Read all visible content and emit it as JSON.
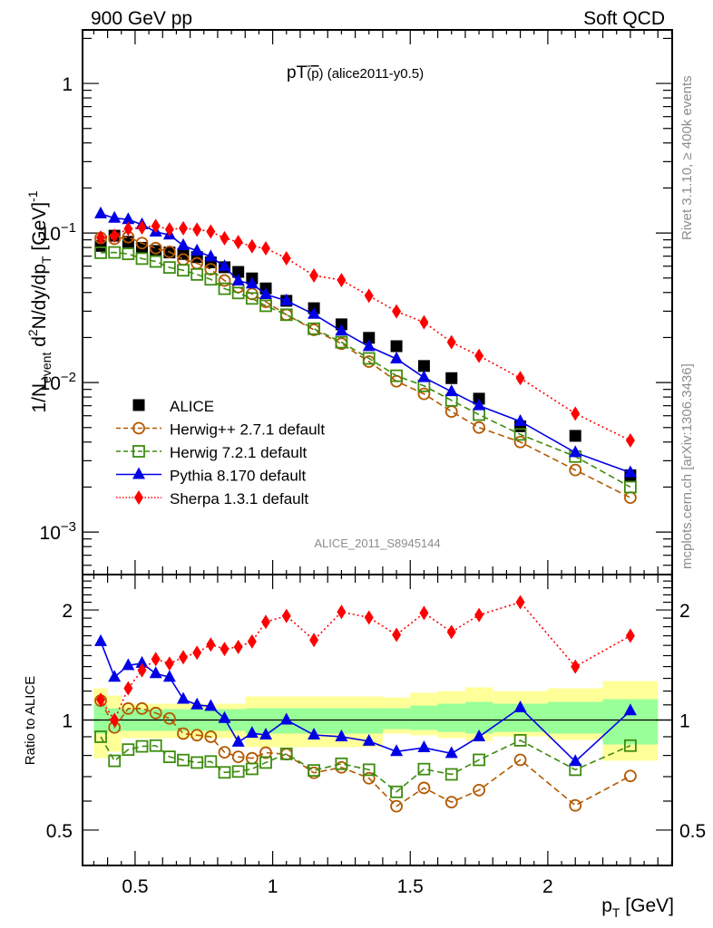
{
  "header": {
    "left_label": "900 GeV pp",
    "right_label": "Soft QCD"
  },
  "side_labels": {
    "rivet": "Rivet 3.1.10, ≥ 400k events",
    "mcplots": "mcplots.cern.ch [arXiv:1306.3436]"
  },
  "chart_data": [
    {
      "type": "scatter",
      "panel": "main",
      "title": "pT(p̄) (alice2011-y0.5)",
      "title_parts": {
        "pre": "pT",
        "paren_open": "(",
        "particle": "p",
        "paren_close": ")",
        "post": " (alice2011-y0.5)"
      },
      "analysis_label": "ALICE_2011_S8945144",
      "ylabel": "1/N_event d²N/dy/dp_T [GeV]⁻¹",
      "ylabel_parts": {
        "a": "1/N",
        "a_sub": "event",
        "b": " d",
        "b_sup": "2",
        "c": "N/dy/dp",
        "c_sub": "T",
        "d": "  [GeV]",
        "d_sup": "-1"
      },
      "yscale": "log",
      "ylim": [
        0.00052,
        2.28
      ],
      "xlim": [
        0.309,
        2.452
      ],
      "y_ticks": [
        {
          "value": 1,
          "label": "1"
        },
        {
          "value": 0.1,
          "label": "10",
          "exp": "−1"
        },
        {
          "value": 0.01,
          "label": "10",
          "exp": "−2"
        },
        {
          "value": 0.001,
          "label": "10",
          "exp": "−3"
        }
      ],
      "legend_position": "lower-left",
      "x": [
        0.375,
        0.425,
        0.475,
        0.525,
        0.575,
        0.625,
        0.675,
        0.725,
        0.775,
        0.825,
        0.875,
        0.925,
        0.975,
        1.05,
        1.15,
        1.25,
        1.35,
        1.45,
        1.55,
        1.65,
        1.75,
        1.9,
        2.1,
        2.3
      ],
      "series": [
        {
          "name": "ALICE",
          "marker": "square",
          "color": "#000000",
          "line": "none",
          "values": [
            0.082,
            0.0959,
            0.0873,
            0.0796,
            0.0758,
            0.0741,
            0.0724,
            0.069,
            0.0636,
            0.059,
            0.0549,
            0.0497,
            0.0426,
            0.0352,
            0.0314,
            0.0245,
            0.0199,
            0.0175,
            0.0129,
            0.0107,
            0.0078,
            0.0051,
            0.0044,
            0.0024
          ]
        },
        {
          "name": "Herwig++ 2.7.1 default",
          "marker": "open-circle",
          "color": "#b35900",
          "line": "dashed",
          "values": [
            0.0927,
            0.0915,
            0.0938,
            0.0856,
            0.0792,
            0.0748,
            0.0665,
            0.0627,
            0.0572,
            0.0481,
            0.0435,
            0.0391,
            0.0347,
            0.0284,
            0.0225,
            0.0182,
            0.0138,
            0.0102,
            0.0084,
            0.0064,
            0.005,
            0.004,
            0.0026,
            0.0017
          ]
        },
        {
          "name": "Herwig 7.2.1 default",
          "marker": "open-square",
          "color": "#3d8c0f",
          "line": "dashed",
          "values": [
            0.0738,
            0.0741,
            0.0725,
            0.0674,
            0.0645,
            0.0588,
            0.0563,
            0.0528,
            0.049,
            0.0424,
            0.0397,
            0.0365,
            0.0326,
            0.0284,
            0.0229,
            0.0186,
            0.0145,
            0.0111,
            0.0095,
            0.0076,
            0.0061,
            0.0045,
            0.0032,
            0.002
          ]
        },
        {
          "name": "Pythia 8.170 default",
          "marker": "triangle",
          "color": "#0000e6",
          "line": "solid",
          "values": [
            0.1345,
            0.1256,
            0.1231,
            0.1138,
            0.1016,
            0.0971,
            0.0825,
            0.0759,
            0.0693,
            0.0596,
            0.0478,
            0.0457,
            0.0388,
            0.0352,
            0.0286,
            0.0221,
            0.0174,
            0.0144,
            0.0108,
            0.0087,
            0.007,
            0.0055,
            0.0034,
            0.0025
          ]
        },
        {
          "name": "Sherpa 1.3.1 default",
          "marker": "diamond",
          "color": "#ff0000",
          "line": "dotted",
          "values": [
            0.0932,
            0.0959,
            0.1066,
            0.1089,
            0.1113,
            0.1057,
            0.1075,
            0.1054,
            0.1023,
            0.0923,
            0.087,
            0.0815,
            0.079,
            0.0678,
            0.052,
            0.0484,
            0.038,
            0.0299,
            0.0253,
            0.0186,
            0.0151,
            0.0107,
            0.0062,
            0.0041
          ]
        }
      ]
    },
    {
      "type": "scatter",
      "panel": "ratio",
      "ylabel": "Ratio to ALICE",
      "xlabel": "p_T [GeV]",
      "xlabel_parts": {
        "a": "p",
        "a_sub": "T",
        "b": " [GeV]"
      },
      "yscale": "log",
      "ylim": [
        0.4,
        2.5
      ],
      "xlim": [
        0.309,
        2.452
      ],
      "reference_line": 1,
      "x_ticks": [
        {
          "value": 0.5,
          "label": "0.5"
        },
        {
          "value": 1,
          "label": "1"
        },
        {
          "value": 1.5,
          "label": "1.5"
        },
        {
          "value": 2,
          "label": "2"
        }
      ],
      "y_ticks": [
        {
          "value": 2,
          "label": "2"
        },
        {
          "value": 1,
          "label": "1"
        },
        {
          "value": 0.5,
          "label": "0.5"
        }
      ],
      "x": [
        0.375,
        0.425,
        0.475,
        0.525,
        0.575,
        0.625,
        0.675,
        0.725,
        0.775,
        0.825,
        0.875,
        0.925,
        0.975,
        1.05,
        1.15,
        1.25,
        1.35,
        1.45,
        1.55,
        1.65,
        1.75,
        1.9,
        2.1,
        2.3
      ],
      "bands": [
        {
          "x_range": [
            0.35,
            0.4
          ],
          "stat": [
            0.918,
            1.102
          ],
          "total": [
            0.787,
            1.221
          ]
        },
        {
          "x_range": [
            0.4,
            0.45
          ],
          "stat": [
            0.928,
            1.077
          ],
          "total": [
            0.819,
            1.166
          ]
        },
        {
          "x_range": [
            0.45,
            0.9
          ],
          "stat": [
            0.934,
            1.071
          ],
          "total": [
            0.892,
            1.108
          ]
        },
        {
          "x_range": [
            0.9,
            1.4
          ],
          "stat": [
            0.918,
            1.077
          ],
          "total": [
            0.843,
            1.16
          ]
        },
        {
          "x_range": [
            1.4,
            1.5
          ],
          "stat": [
            0.944,
            1.077
          ],
          "total": [
            0.918,
            1.153
          ]
        },
        {
          "x_range": [
            1.5,
            1.6
          ],
          "stat": [
            0.939,
            1.095
          ],
          "total": [
            0.908,
            1.187
          ]
        },
        {
          "x_range": [
            1.6,
            1.7
          ],
          "stat": [
            0.928,
            1.108
          ],
          "total": [
            0.892,
            1.2
          ]
        },
        {
          "x_range": [
            1.7,
            1.8
          ],
          "stat": [
            0.918,
            1.121
          ],
          "total": [
            0.877,
            1.228
          ]
        },
        {
          "x_range": [
            1.8,
            2.0
          ],
          "stat": [
            0.928,
            1.108
          ],
          "total": [
            0.902,
            1.2
          ]
        },
        {
          "x_range": [
            2.0,
            2.2
          ],
          "stat": [
            0.918,
            1.121
          ],
          "total": [
            0.882,
            1.221
          ]
        },
        {
          "x_range": [
            2.2,
            2.4
          ],
          "stat": [
            0.857,
            1.14
          ],
          "total": [
            0.774,
            1.278
          ]
        }
      ],
      "band_colors": {
        "stat": "#99ff99",
        "total": "#ffff99"
      },
      "series": [
        {
          "name": "Herwig++ 2.7.1 default",
          "marker": "open-circle",
          "color": "#b35900",
          "line": "dashed",
          "values": [
            1.13,
            0.954,
            1.075,
            1.075,
            1.045,
            1.01,
            0.918,
            0.909,
            0.9,
            0.816,
            0.793,
            0.786,
            0.814,
            0.806,
            0.717,
            0.742,
            0.693,
            0.581,
            0.652,
            0.596,
            0.643,
            0.778,
            0.584,
            0.703
          ]
        },
        {
          "name": "Herwig 7.2.1 default",
          "marker": "open-square",
          "color": "#3d8c0f",
          "line": "dashed",
          "values": [
            0.9,
            0.773,
            0.83,
            0.847,
            0.851,
            0.793,
            0.777,
            0.765,
            0.77,
            0.719,
            0.723,
            0.735,
            0.765,
            0.808,
            0.728,
            0.759,
            0.731,
            0.636,
            0.734,
            0.71,
            0.778,
            0.88,
            0.731,
            0.851
          ]
        },
        {
          "name": "Pythia 8.170 default",
          "marker": "triangle",
          "color": "#0000e6",
          "line": "solid",
          "values": [
            1.64,
            1.31,
            1.41,
            1.43,
            1.34,
            1.31,
            1.14,
            1.1,
            1.09,
            1.01,
            0.87,
            0.92,
            0.91,
            1.0,
            0.91,
            0.9,
            0.875,
            0.82,
            0.84,
            0.81,
            0.9,
            1.08,
            0.77,
            1.06
          ]
        },
        {
          "name": "Sherpa 1.3.1 default",
          "marker": "diamond",
          "color": "#ff0000",
          "line": "dotted",
          "values": [
            1.136,
            1.0,
            1.221,
            1.368,
            1.468,
            1.427,
            1.485,
            1.528,
            1.609,
            1.564,
            1.585,
            1.64,
            1.855,
            1.927,
            1.655,
            1.975,
            1.908,
            1.71,
            1.963,
            1.741,
            1.938,
            2.1,
            1.4,
            1.7
          ]
        }
      ]
    }
  ]
}
